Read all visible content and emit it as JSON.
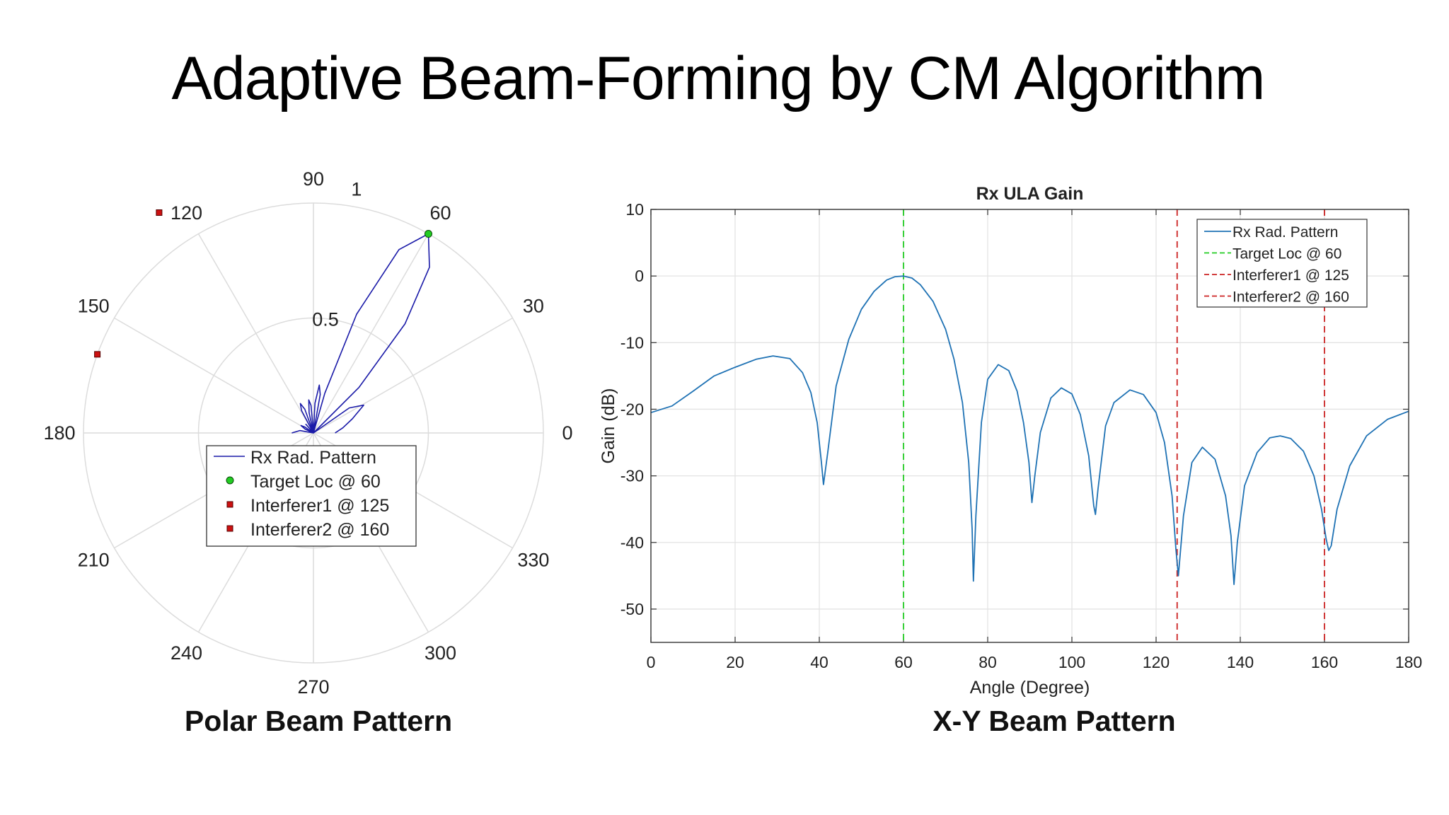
{
  "slide": {
    "title": "Adaptive Beam-Forming by CM Algorithm",
    "polar_caption": "Polar Beam Pattern",
    "xy_caption": "X-Y Beam Pattern"
  },
  "chart_data": [
    {
      "type": "polar",
      "title": "",
      "angle_ticks": [
        "0",
        "30",
        "60",
        "90",
        "120",
        "150",
        "180",
        "210",
        "240",
        "270",
        "300",
        "330"
      ],
      "radius_ticks": [
        "0.5",
        "1"
      ],
      "rlim": [
        0,
        1
      ],
      "grid": true,
      "legend_position": "lower-center",
      "legend": [
        {
          "label": "Rx Rad. Pattern",
          "kind": "line",
          "color": "#1a1aa8"
        },
        {
          "label": "Target Loc @ 60",
          "kind": "marker",
          "color": "#22cc22"
        },
        {
          "label": "Interferer1 @  125",
          "kind": "marker",
          "color": "#cc1111"
        },
        {
          "label": "Interferer2 @ 160",
          "kind": "marker",
          "color": "#cc1111"
        }
      ],
      "markers": [
        {
          "name": "Target Loc @ 60",
          "angle": 60,
          "r": 1.0,
          "color": "#22cc22"
        },
        {
          "name": "Interferer1 @  125",
          "angle": 125,
          "r": 1.17,
          "color": "#cc1111"
        },
        {
          "name": "Interferer2 @ 160",
          "angle": 160,
          "r": 1.0,
          "color": "#cc1111"
        }
      ],
      "series": [
        {
          "name": "Rx Rad. Pattern",
          "color": "#1a1aa8",
          "angles": [
            0,
            10,
            20,
            29,
            35,
            41,
            45,
            50,
            55,
            60,
            65,
            70,
            74,
            76.5,
            80,
            83,
            87,
            91,
            95,
            98,
            102,
            105.5,
            110,
            114,
            118,
            125,
            131,
            138.5,
            145,
            149,
            155,
            161,
            170,
            180
          ],
          "values": [
            0.094,
            0.13,
            0.18,
            0.25,
            0.19,
            0.0,
            0.28,
            0.62,
            0.88,
            1.0,
            0.88,
            0.55,
            0.18,
            0.0,
            0.17,
            0.21,
            0.13,
            0.0,
            0.12,
            0.145,
            0.09,
            0.0,
            0.11,
            0.14,
            0.11,
            0.0,
            0.05,
            0.0,
            0.045,
            0.063,
            0.04,
            0.0,
            0.06,
            0.094
          ]
        }
      ]
    },
    {
      "type": "line",
      "title": "Rx ULA Gain",
      "xlabel": "Angle (Degree)",
      "ylabel": "Gain (dB)",
      "xlim": [
        0,
        180
      ],
      "ylim": [
        -55,
        10
      ],
      "xticks": [
        0,
        20,
        40,
        60,
        80,
        100,
        120,
        140,
        160,
        180
      ],
      "yticks": [
        10,
        0,
        -10,
        -20,
        -30,
        -40,
        -50
      ],
      "grid": true,
      "legend_position": "top-right",
      "series": [
        {
          "name": "Rx Rad. Pattern",
          "color": "#1f72b4",
          "x": [
            0,
            5,
            10,
            15,
            20,
            25,
            29,
            33,
            36,
            38,
            39.5,
            40.5,
            41,
            42,
            44,
            47,
            50,
            53,
            56,
            58,
            60,
            62,
            64,
            67,
            70,
            72,
            74,
            75.5,
            76.3,
            76.6,
            77.2,
            78.5,
            80,
            82.5,
            85,
            87,
            88.5,
            89.8,
            90.5,
            91.2,
            92.5,
            95,
            97.5,
            100,
            102,
            104,
            105.2,
            105.6,
            106.2,
            108,
            110,
            113.8,
            117,
            120,
            122,
            123.8,
            124.7,
            125.3,
            126.5,
            128.5,
            131,
            134,
            136.5,
            137.8,
            138.5,
            139.3,
            141,
            144,
            147,
            149.5,
            152,
            155,
            157.5,
            159.3,
            160.4,
            161,
            161.6,
            163,
            166,
            170,
            175,
            180
          ],
          "y": [
            -20.5,
            -19.5,
            -17.3,
            -15,
            -13.7,
            -12.5,
            -12,
            -12.4,
            -14.5,
            -17.5,
            -22,
            -28,
            -31.3,
            -26.5,
            -16.5,
            -9.5,
            -5,
            -2.3,
            -0.6,
            -0.1,
            0,
            -0.3,
            -1.3,
            -3.8,
            -8,
            -12.5,
            -19,
            -28,
            -38,
            -45.8,
            -36,
            -22,
            -15.5,
            -13.3,
            -14.2,
            -17.3,
            -22,
            -28,
            -34,
            -30,
            -23.5,
            -18.3,
            -16.8,
            -17.7,
            -20.8,
            -27,
            -34.5,
            -35.8,
            -32,
            -22.5,
            -19,
            -17.1,
            -17.8,
            -20.5,
            -25,
            -33,
            -41,
            -45,
            -36,
            -28,
            -25.7,
            -27.5,
            -33,
            -39,
            -46.3,
            -40,
            -31.5,
            -26.5,
            -24.3,
            -24,
            -24.4,
            -26.3,
            -30,
            -35,
            -39.5,
            -41.2,
            -40.5,
            -35,
            -28.5,
            -24,
            -21.5,
            -20.3
          ]
        }
      ],
      "reference_lines": [
        {
          "name": "Target Loc @ 60",
          "x": 60,
          "color": "#22cc22"
        },
        {
          "name": "Interferer1 @  125",
          "x": 125,
          "color": "#cc2222"
        },
        {
          "name": "Interferer2 @ 160",
          "x": 160,
          "color": "#cc2222"
        }
      ],
      "legend": [
        {
          "label": "Rx Rad. Pattern",
          "color": "#1f72b4",
          "dashed": false
        },
        {
          "label": "Target Loc @ 60",
          "color": "#22cc22",
          "dashed": true
        },
        {
          "label": "Interferer1 @  125",
          "color": "#cc2222",
          "dashed": true
        },
        {
          "label": "Interferer2 @ 160",
          "color": "#cc2222",
          "dashed": true
        }
      ]
    }
  ]
}
